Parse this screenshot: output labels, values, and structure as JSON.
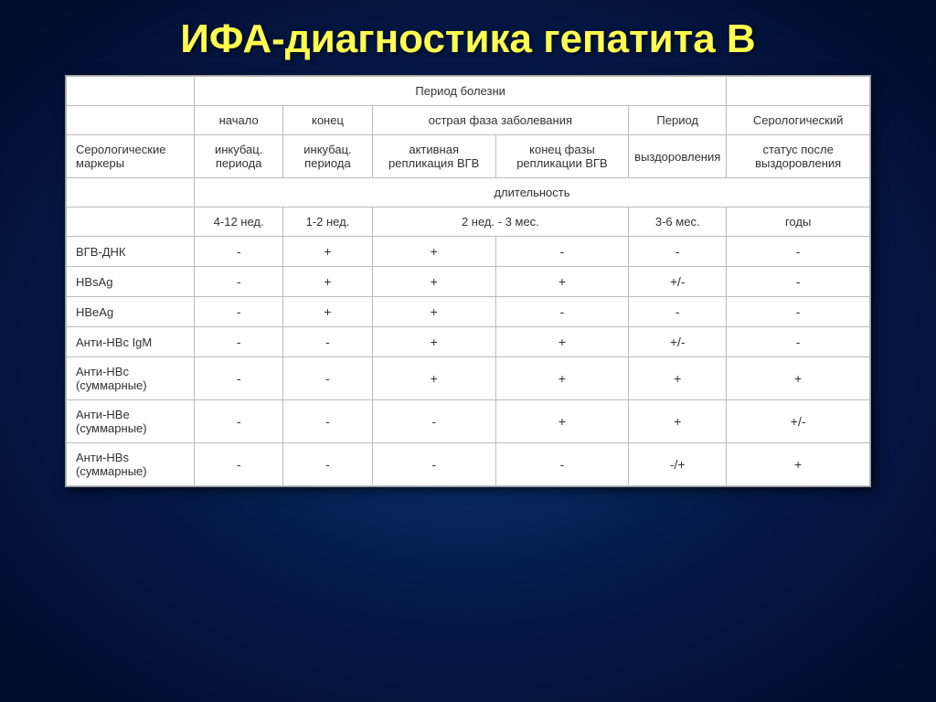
{
  "title": "ИФА-диагностика гепатита В",
  "header": {
    "period_disease": "Период болезни",
    "start": "начало",
    "end": "конец",
    "acute_phase": "острая фаза заболевания",
    "period": "Период",
    "serological": "Серологический",
    "sero_markers": "Серологические маркеры",
    "incub_period1": "инкубац. периода",
    "incub_period2": "инкубац. периода",
    "active_repl": "активная репликация ВГВ",
    "end_repl": "конец фазы репликации ВГВ",
    "recovery": "выздоровления",
    "status_after": "статус после выздоровления",
    "duration": "длительность",
    "dur1": "4-12 нед.",
    "dur2": "1-2 нед.",
    "dur3": "2 нед. - 3 мес.",
    "dur4": "3-6 мес.",
    "dur5": "годы"
  },
  "rows": [
    {
      "label": "ВГВ-ДНК",
      "cells": [
        "-",
        "+",
        "+",
        "-",
        "-",
        "-"
      ]
    },
    {
      "label": "HBsAg",
      "cells": [
        "-",
        "+",
        "+",
        "+",
        "+/-",
        "-"
      ]
    },
    {
      "label": "HBeAg",
      "cells": [
        "-",
        "+",
        "+",
        "-",
        "-",
        "-"
      ]
    },
    {
      "label": "Анти-HBc IgM",
      "cells": [
        "-",
        "-",
        "+",
        "+",
        "+/-",
        "-"
      ]
    },
    {
      "label": "Анти-HBc (суммарные)",
      "cells": [
        "-",
        "-",
        "+",
        "+",
        "+",
        "+"
      ]
    },
    {
      "label": "Анти-HBe (суммарные)",
      "cells": [
        "-",
        "-",
        "-",
        "+",
        "+",
        "+/-"
      ]
    },
    {
      "label": "Анти-HBs (суммарные)",
      "cells": [
        "-",
        "-",
        "-",
        "-",
        "-/+",
        "+"
      ]
    }
  ]
}
